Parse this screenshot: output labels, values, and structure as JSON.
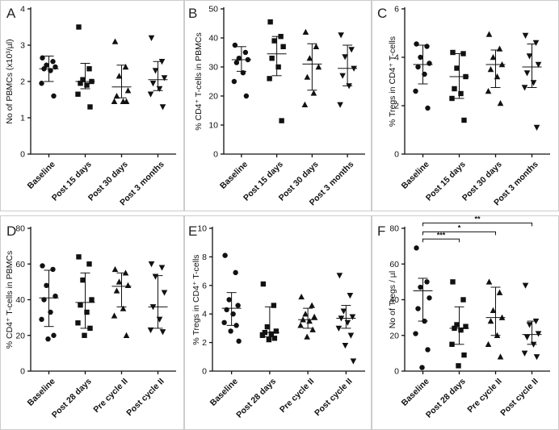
{
  "chart_data": [
    {
      "panel": "A",
      "type": "scatter",
      "ylabel": "No of PBMCs (x10³/µl)",
      "ylim": [
        0,
        4
      ],
      "yticks": [
        "0",
        "1",
        "2",
        "3",
        "4"
      ],
      "categories": [
        "Baseline",
        "Post 15 days",
        "Post 30 days",
        "Post 3 months"
      ],
      "markers": [
        "circle",
        "square",
        "triangle-up",
        "triangle-down"
      ],
      "points": [
        [
          2.65,
          2.55,
          2.45,
          2.4,
          2.35,
          2.3,
          1.95,
          1.6
        ],
        [
          3.5,
          2.35,
          2.05,
          2.0,
          1.95,
          1.9,
          1.65,
          1.3
        ],
        [
          3.1,
          2.4,
          2.15,
          1.75,
          1.6,
          1.45,
          1.45,
          1.45
        ],
        [
          3.2,
          2.55,
          2.3,
          2.1,
          1.95,
          1.8,
          1.65,
          1.3
        ]
      ],
      "mean": [
        2.35,
        2.0,
        1.85,
        2.05
      ],
      "upper": [
        2.7,
        2.5,
        2.45,
        2.55
      ],
      "lower": [
        2.0,
        1.8,
        1.55,
        1.75
      ],
      "significance": []
    },
    {
      "panel": "B",
      "type": "scatter",
      "ylabel": "% CD4⁺ T-cells in PBMCs",
      "ylim": [
        0,
        50
      ],
      "yticks": [
        "0",
        "10",
        "20",
        "30",
        "40",
        "50"
      ],
      "categories": [
        "Baseline",
        "Post 15 days",
        "Post 30 days",
        "Post 3 months"
      ],
      "markers": [
        "circle",
        "square",
        "triangle-up",
        "triangle-down"
      ],
      "points": [
        [
          37.5,
          35,
          33,
          32.5,
          31.5,
          28,
          25,
          20
        ],
        [
          45.5,
          40.5,
          39,
          37,
          33,
          30,
          26,
          11.5
        ],
        [
          42,
          37,
          33,
          30,
          26.5,
          21,
          17
        ],
        [
          41,
          36,
          33.5,
          29.5,
          27,
          23.5,
          17
        ]
      ],
      "mean": [
        32.5,
        34.5,
        31,
        29.5
      ],
      "upper": [
        37,
        40.5,
        38,
        37.5
      ],
      "lower": [
        28.5,
        27,
        22,
        23.5
      ],
      "significance": []
    },
    {
      "panel": "C",
      "type": "scatter",
      "ylabel": "% Tregs in CD4⁺ T-cells",
      "ylim": [
        0,
        6
      ],
      "yticks": [
        "0",
        "2",
        "4",
        "6"
      ],
      "categories": [
        "Baseline",
        "Post 15 days",
        "Post 30 days",
        "Post 3 months"
      ],
      "markers": [
        "circle",
        "square",
        "triangle-up",
        "triangle-down"
      ],
      "points": [
        [
          4.55,
          4.45,
          4.0,
          3.75,
          3.6,
          3.3,
          2.6,
          1.9
        ],
        [
          4.2,
          4.15,
          3.55,
          3.2,
          2.7,
          2.5,
          2.3,
          1.4
        ],
        [
          4.95,
          4.35,
          4.0,
          3.7,
          3.5,
          3.2,
          2.6,
          2.1
        ],
        [
          4.9,
          4.6,
          4.05,
          3.7,
          3.35,
          2.95,
          2.75,
          1.1
        ]
      ],
      "mean": [
        3.7,
        3.2,
        3.7,
        3.6
      ],
      "upper": [
        4.5,
        4.15,
        4.3,
        4.55
      ],
      "lower": [
        2.9,
        2.3,
        2.75,
        2.75
      ],
      "significance": []
    },
    {
      "panel": "D",
      "type": "scatter",
      "ylabel": "% CD4⁺ T-cells in PBMCs",
      "ylim": [
        0,
        80
      ],
      "yticks": [
        "0",
        "20",
        "40",
        "60",
        "80"
      ],
      "categories": [
        "Baseline",
        "Post 28 days",
        "Pre cycle II",
        "Post cycle II"
      ],
      "markers": [
        "circle",
        "square",
        "triangle-up",
        "triangle-down"
      ],
      "points": [
        [
          59,
          57,
          48,
          42,
          40,
          33,
          29,
          20,
          18
        ],
        [
          64,
          60,
          51,
          40,
          37,
          33,
          27,
          24,
          20
        ],
        [
          57,
          55,
          50,
          48,
          45,
          35,
          31,
          20
        ],
        [
          60,
          58,
          53,
          44,
          36,
          29,
          23,
          22
        ]
      ],
      "mean": [
        41,
        38.5,
        47.5,
        36
      ],
      "upper": [
        56.5,
        55,
        55,
        53.5
      ],
      "lower": [
        25,
        24,
        36,
        24
      ],
      "significance": []
    },
    {
      "panel": "E",
      "type": "scatter",
      "ylabel": "% Tregs in CD4⁺ T-cells",
      "ylim": [
        0,
        10
      ],
      "yticks": [
        "0",
        "2",
        "4",
        "6",
        "8",
        "10"
      ],
      "categories": [
        "Baseline",
        "Post 28 days",
        "Pre cycle II",
        "Post cycle II"
      ],
      "markers": [
        "circle",
        "square",
        "triangle-up",
        "triangle-down"
      ],
      "points": [
        [
          8.1,
          6.9,
          5.0,
          4.6,
          4.3,
          4.0,
          3.4,
          3.2,
          2.8,
          2.1
        ],
        [
          6.1,
          4.6,
          3.1,
          2.8,
          2.7,
          2.6,
          2.5,
          2.3,
          2.2
        ],
        [
          5.2,
          4.6,
          4.0,
          3.8,
          3.6,
          3.5,
          3.2,
          2.9,
          2.4
        ],
        [
          6.7,
          5.3,
          4.2,
          3.8,
          3.7,
          3.4,
          3.0,
          2.5,
          1.8,
          0.7
        ]
      ],
      "mean": [
        4.4,
        2.7,
        3.6,
        3.7
      ],
      "upper": [
        5.5,
        4.5,
        4.4,
        4.6
      ],
      "lower": [
        3.2,
        2.4,
        3.0,
        3.0
      ],
      "significance": []
    },
    {
      "panel": "F",
      "type": "scatter",
      "ylabel": "No of Tregs / µl",
      "ylim": [
        0,
        80
      ],
      "yticks": [
        "0",
        "20",
        "40",
        "60",
        "80"
      ],
      "categories": [
        "Baseline",
        "Post 28 days",
        "Pre cycle II",
        "Post cycle II"
      ],
      "markers": [
        "circle",
        "square",
        "triangle-up",
        "triangle-down"
      ],
      "points": [
        [
          69,
          50,
          47,
          41,
          35,
          28,
          21,
          12,
          2
        ],
        [
          50,
          40,
          26,
          25,
          24,
          23,
          15,
          9,
          3
        ],
        [
          50,
          44,
          34,
          30,
          28,
          20,
          15,
          8
        ],
        [
          48,
          28,
          26,
          21,
          19,
          15,
          10,
          8
        ]
      ],
      "mean": [
        45,
        24,
        30,
        20.5
      ],
      "upper": [
        52,
        36,
        47,
        28
      ],
      "lower": [
        28,
        15,
        20,
        15
      ],
      "significance": [
        {
          "from": 0,
          "to": 1,
          "label": "***",
          "y": 74
        },
        {
          "from": 0,
          "to": 2,
          "label": "*",
          "y": 78
        },
        {
          "from": 0,
          "to": 3,
          "label": "**",
          "y": 83
        }
      ]
    }
  ]
}
